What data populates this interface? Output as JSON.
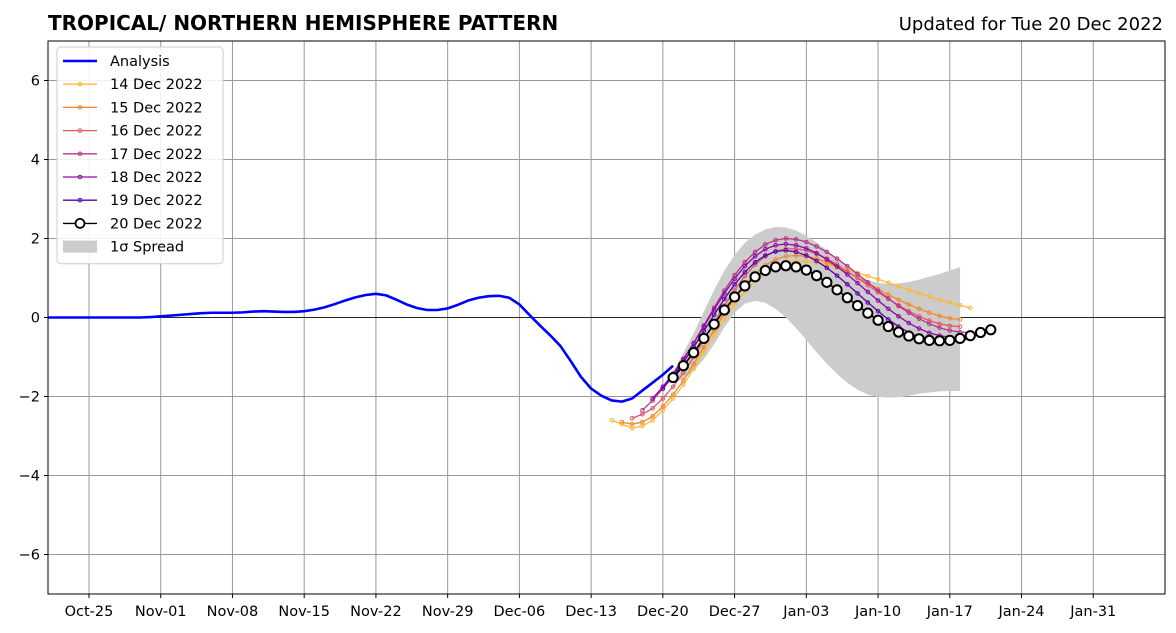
{
  "chart_data": {
    "type": "line",
    "title": "TROPICAL/ NORTHERN HEMISPHERE PATTERN",
    "subtitle": "Updated for Tue 20 Dec 2022",
    "xlabel": "",
    "ylabel": "",
    "xlim": [
      "2022-10-21",
      "2023-02-07"
    ],
    "ylim": [
      -7,
      7
    ],
    "y_ticks": [
      -6,
      -4,
      -2,
      0,
      2,
      4,
      6
    ],
    "y_tick_labels": [
      "−6",
      "−4",
      "−2",
      "0",
      "2",
      "4",
      "6"
    ],
    "x_ticks": [
      "2022-10-25",
      "2022-11-01",
      "2022-11-08",
      "2022-11-15",
      "2022-11-22",
      "2022-11-29",
      "2022-12-06",
      "2022-12-13",
      "2022-12-20",
      "2022-12-27",
      "2023-01-03",
      "2023-01-10",
      "2023-01-17",
      "2023-01-24",
      "2023-01-31"
    ],
    "x_tick_labels": [
      "Oct-25",
      "Nov-01",
      "Nov-08",
      "Nov-15",
      "Nov-22",
      "Nov-29",
      "Dec-06",
      "Dec-13",
      "Dec-20",
      "Dec-27",
      "Jan-03",
      "Jan-10",
      "Jan-17",
      "Jan-24",
      "Jan-31"
    ],
    "grid": true,
    "zero_line": true,
    "legend_position": "top-left",
    "colors": {
      "analysis": "#0000ff",
      "spread": "#cccccc",
      "grid": "#999999"
    },
    "analysis": {
      "name": "Analysis",
      "start_date": "2022-10-21",
      "values": [
        0,
        0,
        0,
        0,
        0,
        0,
        0,
        0,
        0,
        0,
        0.01,
        0.03,
        0.05,
        0.07,
        0.09,
        0.11,
        0.12,
        0.12,
        0.12,
        0.13,
        0.15,
        0.16,
        0.15,
        0.14,
        0.14,
        0.16,
        0.2,
        0.26,
        0.34,
        0.43,
        0.51,
        0.57,
        0.6,
        0.56,
        0.45,
        0.33,
        0.24,
        0.19,
        0.19,
        0.23,
        0.32,
        0.43,
        0.5,
        0.54,
        0.55,
        0.5,
        0.33,
        0.06,
        -0.2,
        -0.45,
        -0.72,
        -1.1,
        -1.5,
        -1.8,
        -1.98,
        -2.1,
        -2.13,
        -2.05,
        -1.85,
        -1.65,
        -1.45,
        -1.22
      ]
    },
    "forecasts": [
      {
        "name": "14 Dec 2022",
        "color": "#fcb936",
        "start_date": "2022-12-15",
        "values": [
          -2.6,
          -2.7,
          -2.8,
          -2.75,
          -2.6,
          -2.35,
          -2.05,
          -1.7,
          -1.3,
          -0.88,
          -0.45,
          -0.05,
          0.33,
          0.66,
          0.93,
          1.14,
          1.29,
          1.38,
          1.42,
          1.42,
          1.39,
          1.34,
          1.27,
          1.2,
          1.13,
          1.05,
          0.97,
          0.88,
          0.79,
          0.7,
          0.61,
          0.53,
          0.45,
          0.38,
          0.31,
          0.24
        ]
      },
      {
        "name": "15 Dec 2022",
        "color": "#f4872c",
        "start_date": "2022-12-16",
        "values": [
          -2.65,
          -2.7,
          -2.65,
          -2.5,
          -2.25,
          -1.95,
          -1.6,
          -1.18,
          -0.75,
          -0.32,
          0.1,
          0.48,
          0.82,
          1.1,
          1.32,
          1.47,
          1.55,
          1.57,
          1.55,
          1.49,
          1.4,
          1.28,
          1.15,
          1.01,
          0.87,
          0.72,
          0.58,
          0.45,
          0.33,
          0.22,
          0.12,
          0.04,
          -0.02,
          -0.05
        ]
      },
      {
        "name": "16 Dec 2022",
        "color": "#e1586a",
        "start_date": "2022-12-17",
        "values": [
          -2.55,
          -2.45,
          -2.3,
          -2.05,
          -1.75,
          -1.4,
          -1.0,
          -0.57,
          -0.13,
          0.3,
          0.7,
          1.05,
          1.34,
          1.55,
          1.68,
          1.74,
          1.74,
          1.7,
          1.61,
          1.49,
          1.34,
          1.17,
          1.0,
          0.82,
          0.64,
          0.47,
          0.31,
          0.16,
          0.03,
          -0.08,
          -0.16,
          -0.21,
          -0.23
        ]
      },
      {
        "name": "17 Dec 2022",
        "color": "#b83289",
        "start_date": "2022-12-18",
        "values": [
          -2.35,
          -2.1,
          -1.8,
          -1.45,
          -1.07,
          -0.65,
          -0.2,
          0.25,
          0.68,
          1.07,
          1.4,
          1.66,
          1.85,
          1.96,
          2.0,
          1.98,
          1.91,
          1.8,
          1.66,
          1.49,
          1.3,
          1.1,
          0.89,
          0.68,
          0.48,
          0.29,
          0.12,
          -0.03,
          -0.16,
          -0.26,
          -0.33,
          -0.37,
          -0.38
        ]
      },
      {
        "name": "18 Dec 2022",
        "color": "#8b0aa5",
        "start_date": "2022-12-19",
        "values": [
          -2.05,
          -1.75,
          -1.42,
          -1.05,
          -0.65,
          -0.23,
          0.2,
          0.61,
          0.98,
          1.3,
          1.55,
          1.73,
          1.83,
          1.86,
          1.83,
          1.75,
          1.63,
          1.47,
          1.29,
          1.09,
          0.87,
          0.65,
          0.43,
          0.22,
          0.03,
          -0.14,
          -0.28,
          -0.39,
          -0.46,
          -0.5,
          -0.51,
          -0.49
        ]
      },
      {
        "name": "19 Dec 2022",
        "color": "#5c01a6",
        "start_date": "2022-12-20",
        "values": [
          -1.8,
          -1.48,
          -1.13,
          -0.75,
          -0.34,
          0.07,
          0.47,
          0.84,
          1.15,
          1.4,
          1.57,
          1.67,
          1.7,
          1.66,
          1.57,
          1.43,
          1.26,
          1.06,
          0.84,
          0.61,
          0.38,
          0.16,
          -0.05,
          -0.23,
          -0.38,
          -0.5,
          -0.58,
          -0.62,
          -0.62,
          -0.59,
          -0.53
        ]
      },
      {
        "name": "20 Dec 2022",
        "color": "#000000",
        "start_date": "2022-12-21",
        "values": [
          -1.52,
          -1.22,
          -0.89,
          -0.53,
          -0.17,
          0.19,
          0.52,
          0.8,
          1.03,
          1.19,
          1.28,
          1.31,
          1.28,
          1.2,
          1.06,
          0.89,
          0.7,
          0.5,
          0.3,
          0.11,
          -0.07,
          -0.23,
          -0.37,
          -0.47,
          -0.54,
          -0.58,
          -0.59,
          -0.58,
          -0.53,
          -0.46,
          -0.38,
          -0.31
        ]
      }
    ],
    "spread": {
      "name": "1σ Spread",
      "start_date": "2022-12-21",
      "upper": [
        -1.38,
        -0.9,
        -0.4,
        0.15,
        0.7,
        1.18,
        1.58,
        1.89,
        2.1,
        2.23,
        2.29,
        2.28,
        2.2,
        2.07,
        1.9,
        1.7,
        1.49,
        1.28,
        1.09,
        0.95,
        0.87,
        0.85,
        0.86,
        0.9,
        0.96,
        1.03,
        1.1,
        1.19,
        1.28
      ],
      "lower": [
        -1.65,
        -1.55,
        -1.35,
        -1.05,
        -0.68,
        -0.25,
        0.12,
        0.35,
        0.42,
        0.37,
        0.22,
        0.0,
        -0.27,
        -0.57,
        -0.88,
        -1.17,
        -1.43,
        -1.65,
        -1.83,
        -1.95,
        -2.01,
        -2.03,
        -2.02,
        -1.98,
        -1.93,
        -1.9,
        -1.87,
        -1.86,
        -1.86
      ]
    }
  }
}
